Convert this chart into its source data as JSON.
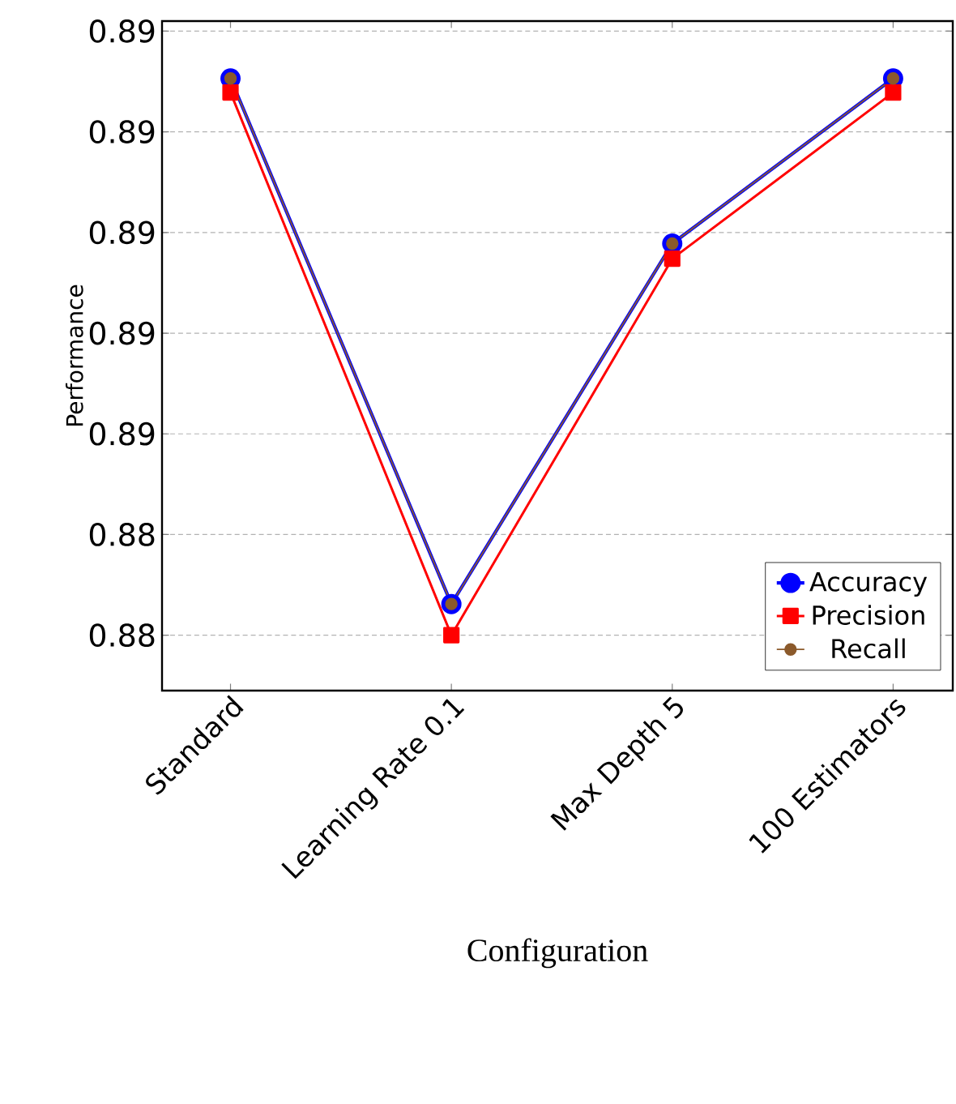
{
  "chart_data": {
    "type": "line",
    "xlabel": "Configuration",
    "ylabel": "Performance",
    "categories": [
      "Standard",
      "Learning  Rate 0.1",
      "Max Depth  5",
      "100 Estimators"
    ],
    "series": [
      {
        "name": "Accuracy",
        "color": "#0000ff",
        "marker": "circle",
        "values": [
          0.88903,
          0.88381,
          0.88739,
          0.88903
        ]
      },
      {
        "name": "Precision",
        "color": "#ff0000",
        "marker": "square",
        "values": [
          0.88889,
          0.8835,
          0.88724,
          0.88889
        ]
      },
      {
        "name": "Recall",
        "color": "#8b5a2b",
        "marker": "circle",
        "values": [
          0.88903,
          0.88381,
          0.88739,
          0.88903
        ]
      }
    ],
    "ylim": [
      0.88295,
      0.8896
    ],
    "yticks": [
      {
        "value": 0.8835,
        "label": "0.88"
      },
      {
        "value": 0.8845,
        "label": "0.88"
      },
      {
        "value": 0.8855,
        "label": "0.89"
      },
      {
        "value": 0.8865,
        "label": "0.89"
      },
      {
        "value": 0.8875,
        "label": "0.89"
      },
      {
        "value": 0.8885,
        "label": "0.89"
      },
      {
        "value": 0.8895,
        "label": "0.89"
      }
    ],
    "grid": "y",
    "legend": "bottom right",
    "line_style": "solid"
  }
}
